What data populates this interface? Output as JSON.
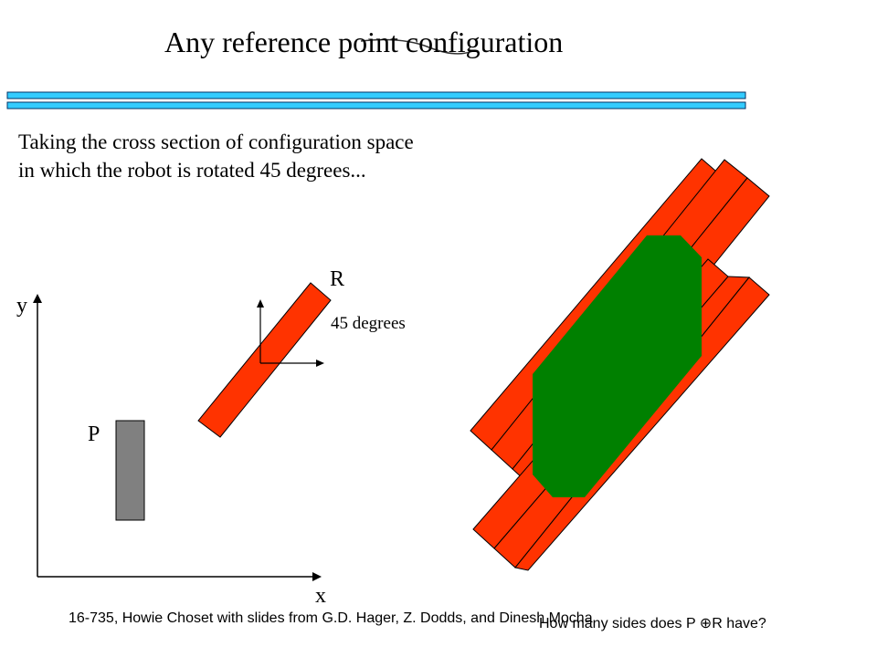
{
  "title": "Any reference point configuration",
  "body": [
    "Taking the cross section of configuration space",
    "in which the robot is rotated 45 degrees..."
  ],
  "figure": {
    "y_axis_label": "y",
    "x_axis_label": "x",
    "obstacle_label": "P",
    "robot_label": "R",
    "rotation_label": "45 degrees"
  },
  "footer": "16-735, Howie Choset with slides from G.D. Hager, Z. Dodds, and Dinesh Mocha",
  "question": "How many sides does P ⊕R have?"
}
